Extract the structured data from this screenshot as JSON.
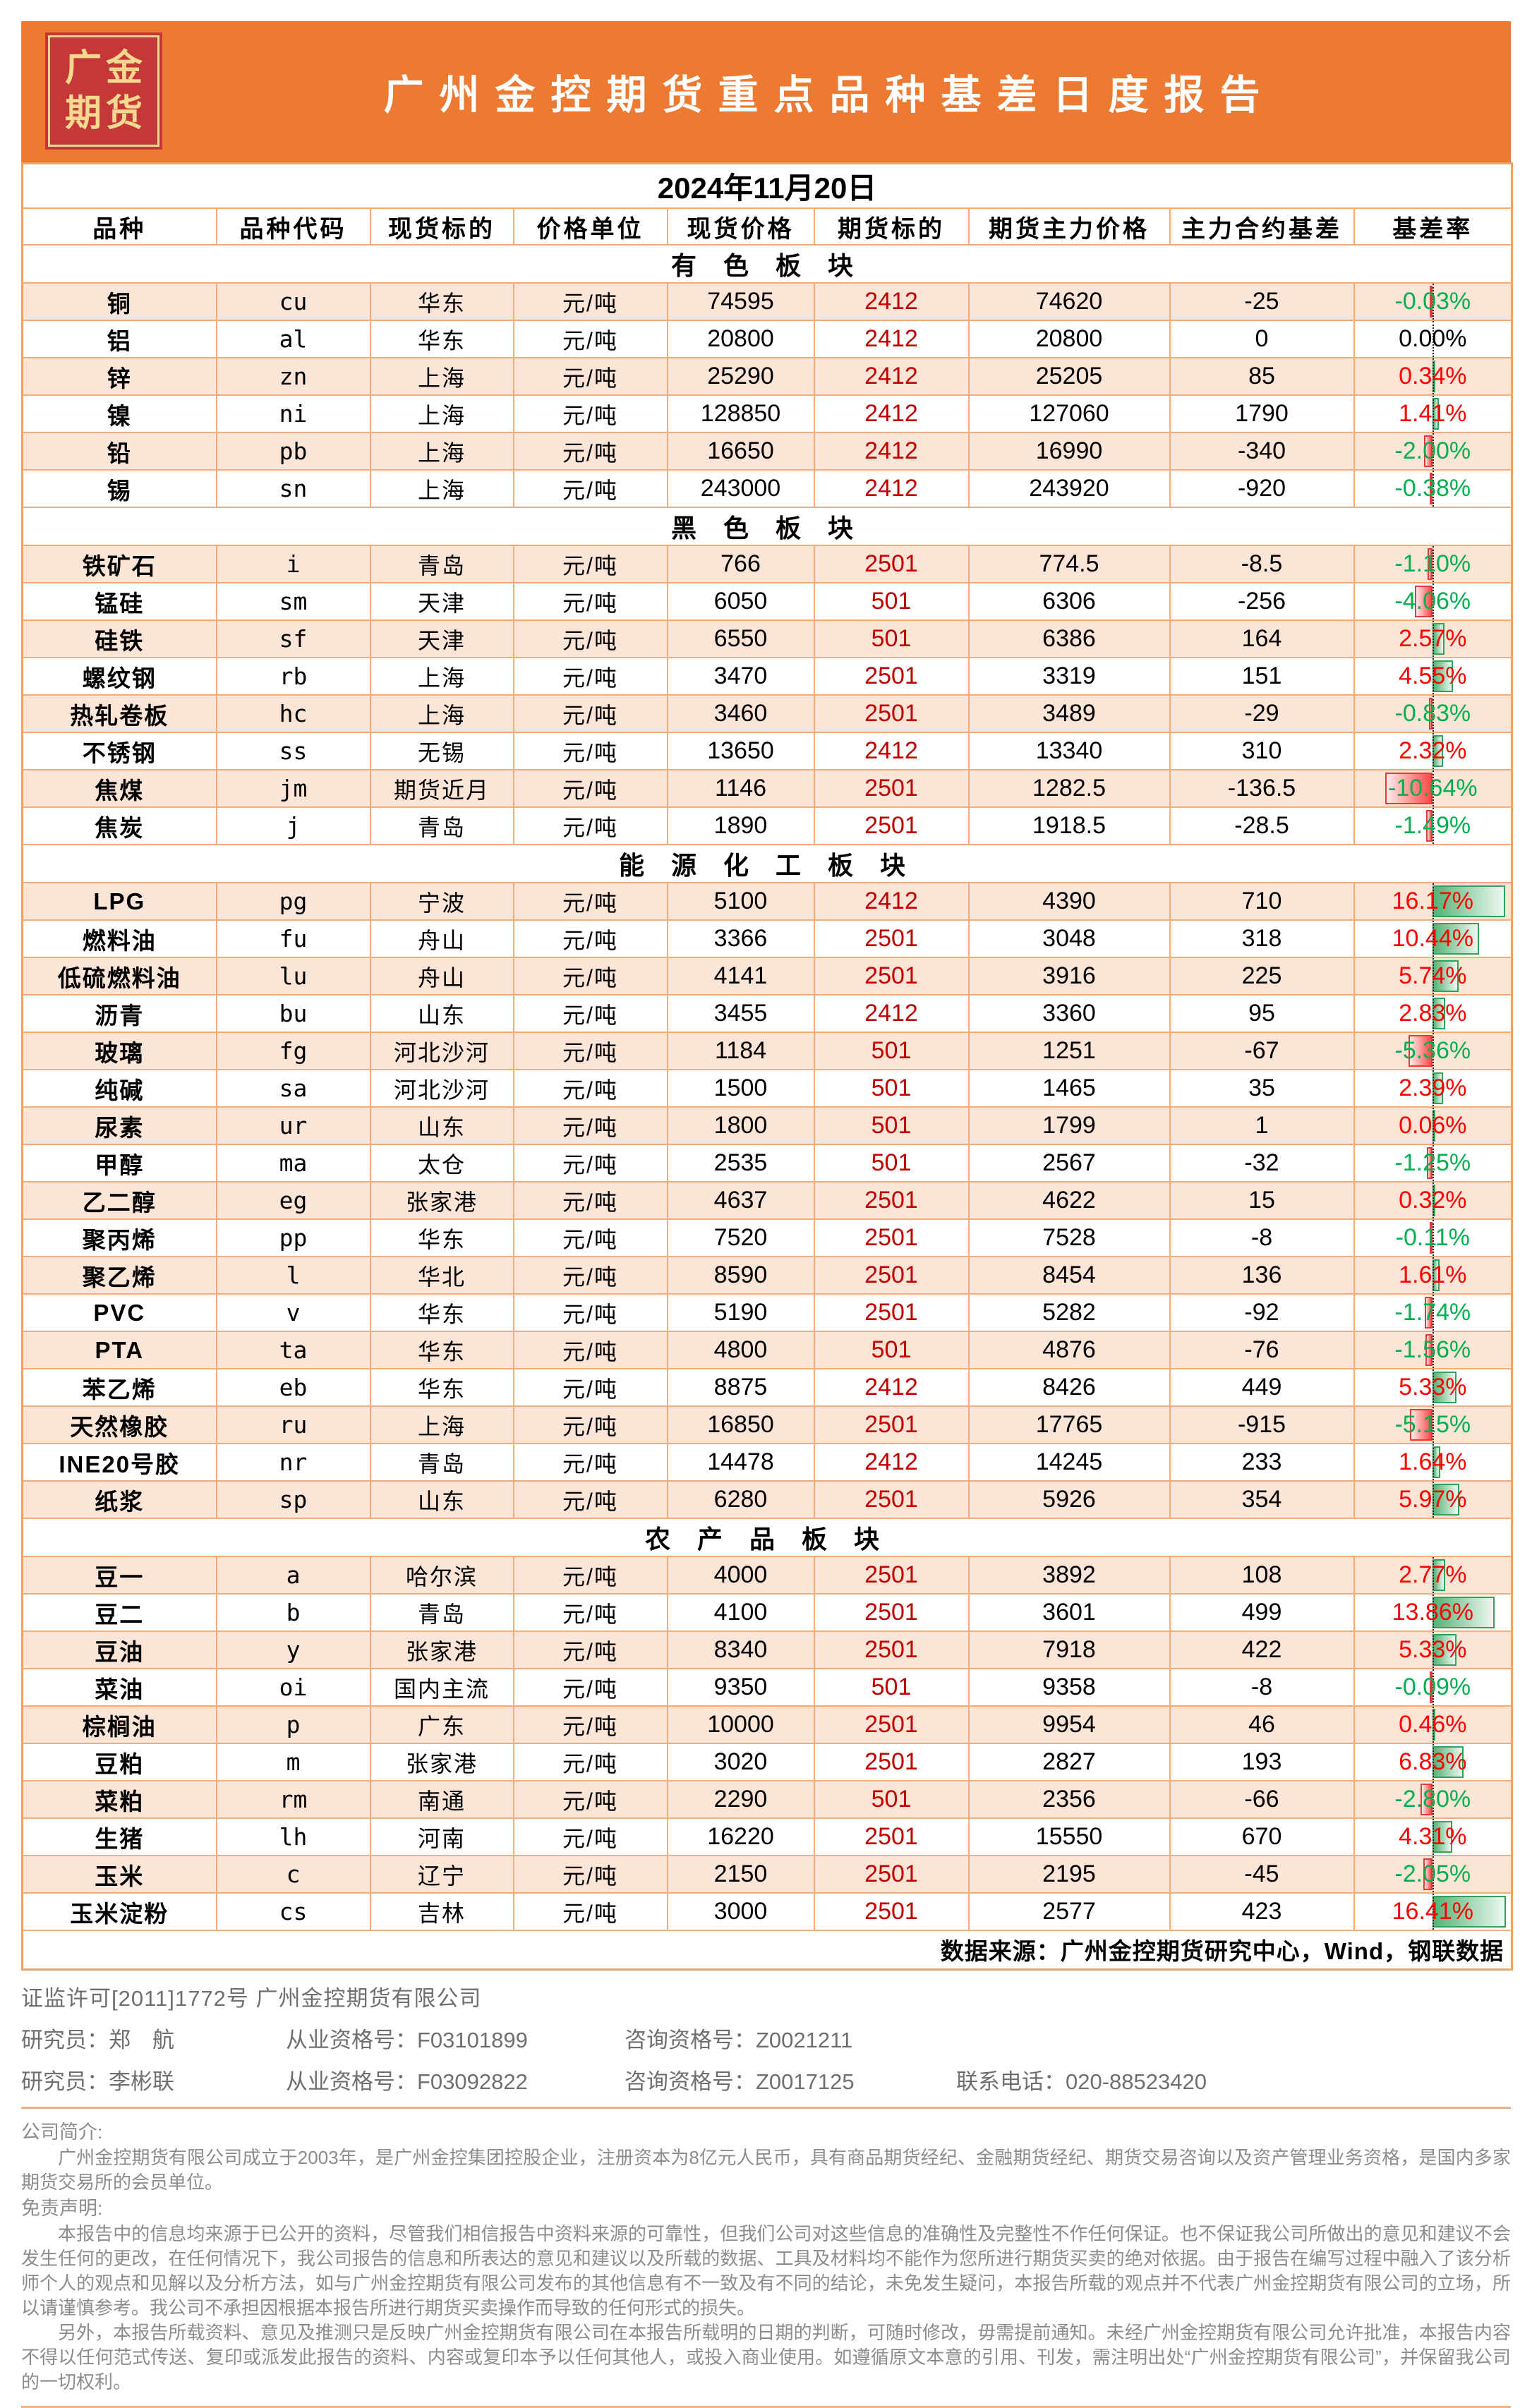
{
  "header": {
    "logo_line1": "广金",
    "logo_line2": "期货",
    "title": "广州金控期货重点品种基差日度报告"
  },
  "date_line": "2024年11月20日",
  "table": {
    "columns": [
      "品种",
      "品种代码",
      "现货标的",
      "价格单位",
      "现货价格",
      "期货标的",
      "期货主力价格",
      "主力合约基差",
      "基差率"
    ],
    "sections": [
      {
        "title": "有 色 板 块",
        "rows": [
          [
            "铜",
            "cu",
            "华东",
            "元/吨",
            "74595",
            "2412",
            "74620",
            "-25",
            "-0.03%"
          ],
          [
            "铝",
            "al",
            "华东",
            "元/吨",
            "20800",
            "2412",
            "20800",
            "0",
            "0.00%"
          ],
          [
            "锌",
            "zn",
            "上海",
            "元/吨",
            "25290",
            "2412",
            "25205",
            "85",
            "0.34%"
          ],
          [
            "镍",
            "ni",
            "上海",
            "元/吨",
            "128850",
            "2412",
            "127060",
            "1790",
            "1.41%"
          ],
          [
            "铅",
            "pb",
            "上海",
            "元/吨",
            "16650",
            "2412",
            "16990",
            "-340",
            "-2.00%"
          ],
          [
            "锡",
            "sn",
            "上海",
            "元/吨",
            "243000",
            "2412",
            "243920",
            "-920",
            "-0.38%"
          ]
        ]
      },
      {
        "title": "黑 色 板 块",
        "rows": [
          [
            "铁矿石",
            "i",
            "青岛",
            "元/吨",
            "766",
            "2501",
            "774.5",
            "-8.5",
            "-1.10%"
          ],
          [
            "锰硅",
            "sm",
            "天津",
            "元/吨",
            "6050",
            "501",
            "6306",
            "-256",
            "-4.06%"
          ],
          [
            "硅铁",
            "sf",
            "天津",
            "元/吨",
            "6550",
            "501",
            "6386",
            "164",
            "2.57%"
          ],
          [
            "螺纹钢",
            "rb",
            "上海",
            "元/吨",
            "3470",
            "2501",
            "3319",
            "151",
            "4.55%"
          ],
          [
            "热轧卷板",
            "hc",
            "上海",
            "元/吨",
            "3460",
            "2501",
            "3489",
            "-29",
            "-0.83%"
          ],
          [
            "不锈钢",
            "ss",
            "无锡",
            "元/吨",
            "13650",
            "2412",
            "13340",
            "310",
            "2.32%"
          ],
          [
            "焦煤",
            "jm",
            "期货近月",
            "元/吨",
            "1146",
            "2501",
            "1282.5",
            "-136.5",
            "-10.64%"
          ],
          [
            "焦炭",
            "j",
            "青岛",
            "元/吨",
            "1890",
            "2501",
            "1918.5",
            "-28.5",
            "-1.49%"
          ]
        ]
      },
      {
        "title": "能 源 化 工 板 块",
        "rows": [
          [
            "LPG",
            "pg",
            "宁波",
            "元/吨",
            "5100",
            "2412",
            "4390",
            "710",
            "16.17%"
          ],
          [
            "燃料油",
            "fu",
            "舟山",
            "元/吨",
            "3366",
            "2501",
            "3048",
            "318",
            "10.44%"
          ],
          [
            "低硫燃料油",
            "lu",
            "舟山",
            "元/吨",
            "4141",
            "2501",
            "3916",
            "225",
            "5.74%"
          ],
          [
            "沥青",
            "bu",
            "山东",
            "元/吨",
            "3455",
            "2412",
            "3360",
            "95",
            "2.83%"
          ],
          [
            "玻璃",
            "fg",
            "河北沙河",
            "元/吨",
            "1184",
            "501",
            "1251",
            "-67",
            "-5.36%"
          ],
          [
            "纯碱",
            "sa",
            "河北沙河",
            "元/吨",
            "1500",
            "501",
            "1465",
            "35",
            "2.39%"
          ],
          [
            "尿素",
            "ur",
            "山东",
            "元/吨",
            "1800",
            "501",
            "1799",
            "1",
            "0.06%"
          ],
          [
            "甲醇",
            "ma",
            "太仓",
            "元/吨",
            "2535",
            "501",
            "2567",
            "-32",
            "-1.25%"
          ],
          [
            "乙二醇",
            "eg",
            "张家港",
            "元/吨",
            "4637",
            "2501",
            "4622",
            "15",
            "0.32%"
          ],
          [
            "聚丙烯",
            "pp",
            "华东",
            "元/吨",
            "7520",
            "2501",
            "7528",
            "-8",
            "-0.11%"
          ],
          [
            "聚乙烯",
            "l",
            "华北",
            "元/吨",
            "8590",
            "2501",
            "8454",
            "136",
            "1.61%"
          ],
          [
            "PVC",
            "v",
            "华东",
            "元/吨",
            "5190",
            "2501",
            "5282",
            "-92",
            "-1.74%"
          ],
          [
            "PTA",
            "ta",
            "华东",
            "元/吨",
            "4800",
            "501",
            "4876",
            "-76",
            "-1.56%"
          ],
          [
            "苯乙烯",
            "eb",
            "华东",
            "元/吨",
            "8875",
            "2412",
            "8426",
            "449",
            "5.33%"
          ],
          [
            "天然橡胶",
            "ru",
            "上海",
            "元/吨",
            "16850",
            "2501",
            "17765",
            "-915",
            "-5.15%"
          ],
          [
            "INE20号胶",
            "nr",
            "青岛",
            "元/吨",
            "14478",
            "2412",
            "14245",
            "233",
            "1.64%"
          ],
          [
            "纸浆",
            "sp",
            "山东",
            "元/吨",
            "6280",
            "2501",
            "5926",
            "354",
            "5.97%"
          ]
        ]
      },
      {
        "title": "农 产 品 板 块",
        "rows": [
          [
            "豆一",
            "a",
            "哈尔滨",
            "元/吨",
            "4000",
            "2501",
            "3892",
            "108",
            "2.77%"
          ],
          [
            "豆二",
            "b",
            "青岛",
            "元/吨",
            "4100",
            "2501",
            "3601",
            "499",
            "13.86%"
          ],
          [
            "豆油",
            "y",
            "张家港",
            "元/吨",
            "8340",
            "2501",
            "7918",
            "422",
            "5.33%"
          ],
          [
            "菜油",
            "oi",
            "国内主流",
            "元/吨",
            "9350",
            "501",
            "9358",
            "-8",
            "-0.09%"
          ],
          [
            "棕榈油",
            "p",
            "广东",
            "元/吨",
            "10000",
            "2501",
            "9954",
            "46",
            "0.46%"
          ],
          [
            "豆粕",
            "m",
            "张家港",
            "元/吨",
            "3020",
            "2501",
            "2827",
            "193",
            "6.83%"
          ],
          [
            "菜粕",
            "rm",
            "南通",
            "元/吨",
            "2290",
            "501",
            "2356",
            "-66",
            "-2.80%"
          ],
          [
            "生猪",
            "lh",
            "河南",
            "元/吨",
            "16220",
            "2501",
            "15550",
            "670",
            "4.31%"
          ],
          [
            "玉米",
            "c",
            "辽宁",
            "元/吨",
            "2150",
            "2501",
            "2195",
            "-45",
            "-2.05%"
          ],
          [
            "玉米淀粉",
            "cs",
            "吉林",
            "元/吨",
            "3000",
            "2501",
            "2577",
            "423",
            "16.41%"
          ]
        ]
      }
    ],
    "source_note": "数据来源：广州金控期货研究中心，Wind，钢联数据"
  },
  "footer": {
    "license": "证监许可[2011]1772号  广州金控期货有限公司",
    "researchers": [
      {
        "role": "研究员：郑　航",
        "practice": "从业资格号：F03101899",
        "advisory": "咨询资格号：Z0021211",
        "phone": ""
      },
      {
        "role": "研究员：李彬联",
        "practice": "从业资格号：F03092822",
        "advisory": "咨询资格号：Z0017125",
        "phone": "联系电话：020-88523420"
      }
    ],
    "intro_title": "公司简介:",
    "intro": "广州金控期货有限公司成立于2003年，是广州金控集团控股企业，注册资本为8亿元人民币，具有商品期货经纪、金融期货经纪、期货交易咨询以及资产管理业务资格，是国内多家期货交易所的会员单位。",
    "disclaimer_title": "免责声明:",
    "disclaimer_p1": "本报告中的信息均来源于已公开的资料，尽管我们相信报告中资料来源的可靠性，但我们公司对这些信息的准确性及完整性不作任何保证。也不保证我公司所做出的意见和建议不会发生任何的更改，在任何情况下，我公司报告的信息和所表达的意见和建议以及所载的数据、工具及材料均不能作为您所进行期货买卖的绝对依据。由于报告在编写过程中融入了该分析师个人的观点和见解以及分析方法，如与广州金控期货有限公司发布的其他信息有不一致及有不同的结论，未免发生疑问，本报告所载的观点并不代表广州金控期货有限公司的立场，所以请谨慎参考。我公司不承担因根据本报告所进行期货买卖操作而导致的任何形式的损失。",
    "disclaimer_p2": "另外，本报告所载资料、意见及推测只是反映广州金控期货有限公司在本报告所载明的日期的判断，可随时修改，毋需提前通知。未经广州金控期货有限公司允许批准，本报告内容不得以任何范式传送、复印或派发此报告的资料、内容或复印本予以任何其他人，或投入商业使用。如遵循原文本意的引用、刊发，需注明出处“广州金控期货有限公司”，并保留我公司的一切权利。"
  },
  "colors": {
    "band_orange": "#EC7A33",
    "logo_red": "#C5383A",
    "logo_gold": "#F6D88F",
    "grid_border": "#F2AD7B",
    "row_peach": "#FCE4D6",
    "contract_dark_red": "#C00000",
    "rate_up_red": "#FF0000",
    "rate_down_green": "#00B050",
    "bar_green": "#33A05C",
    "bar_red": "#E23B38"
  }
}
